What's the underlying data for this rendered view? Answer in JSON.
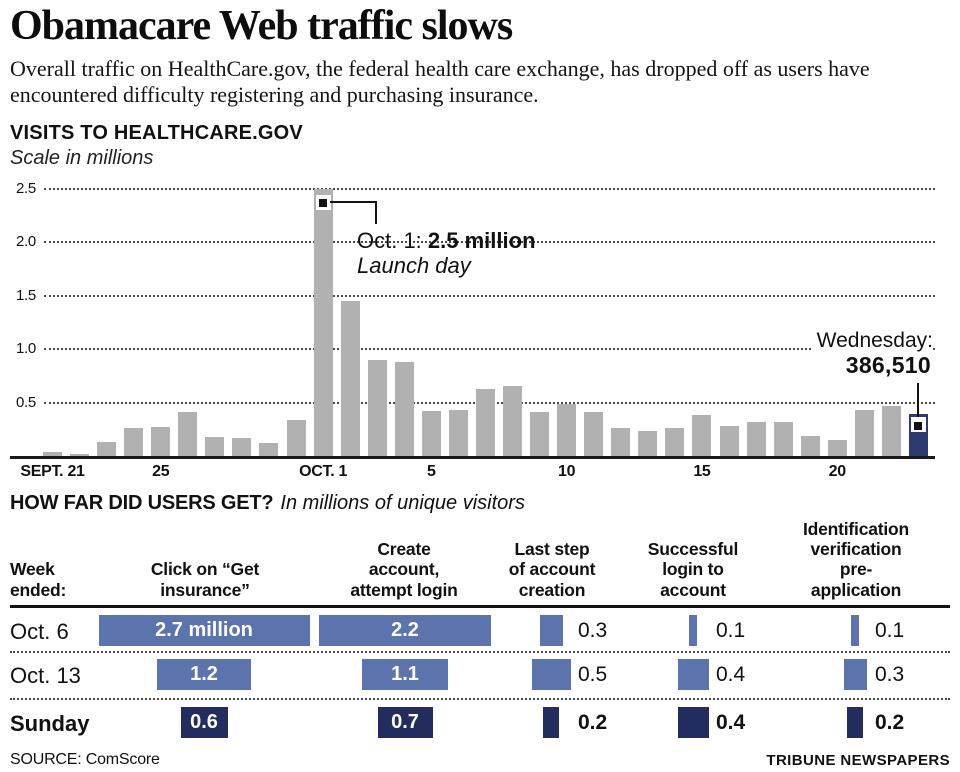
{
  "title": "Obamacare Web traffic slows",
  "subtitle": "Overall traffic on HealthCare.gov, the federal health care exchange, has dropped off as users have encountered difficulty registering and purchasing insurance.",
  "chart": {
    "heading": "VISITS TO HEALTHCARE.GOV",
    "scale_note": "Scale in millions",
    "annotation_launch": {
      "prefix": "Oct. 1: ",
      "value": "2.5 million",
      "note": "Launch day"
    },
    "annotation_latest": {
      "label": "Wednesday:",
      "value": "386,510"
    }
  },
  "chart_data": {
    "type": "bar",
    "title": "Visits to HealthCare.gov",
    "ylabel": "Scale in millions",
    "ylim": [
      0,
      2.5
    ],
    "yticks": [
      "2.5",
      "2.0",
      "1.5",
      "1.0",
      "0.5"
    ],
    "grid": "horizontal-dotted",
    "legend": "none",
    "x": [
      "Sept. 21",
      "Sept. 22",
      "Sept. 23",
      "Sept. 24",
      "Sept. 25",
      "Sept. 26",
      "Sept. 27",
      "Sept. 28",
      "Sept. 29",
      "Sept. 30",
      "Oct. 1",
      "Oct. 2",
      "Oct. 3",
      "Oct. 4",
      "Oct. 5",
      "Oct. 6",
      "Oct. 7",
      "Oct. 8",
      "Oct. 9",
      "Oct. 10",
      "Oct. 11",
      "Oct. 12",
      "Oct. 13",
      "Oct. 14",
      "Oct. 15",
      "Oct. 16",
      "Oct. 17",
      "Oct. 18",
      "Oct. 19",
      "Oct. 20",
      "Oct. 21",
      "Oct. 22",
      "Oct. 23"
    ],
    "values": [
      0.04,
      0.02,
      0.13,
      0.26,
      0.27,
      0.41,
      0.18,
      0.17,
      0.12,
      0.34,
      2.5,
      1.45,
      0.9,
      0.88,
      0.42,
      0.43,
      0.63,
      0.66,
      0.41,
      0.49,
      0.41,
      0.26,
      0.23,
      0.26,
      0.38,
      0.28,
      0.32,
      0.32,
      0.19,
      0.15,
      0.43,
      0.47,
      0.39
    ],
    "highlight_index": 32,
    "annotations": [
      {
        "x": "Oct. 1",
        "text": "Oct. 1: 2.5 million — Launch day"
      },
      {
        "x": "Oct. 23",
        "text": "Wednesday: 386,510"
      }
    ],
    "xticks": [
      {
        "label": "SEPT. 21",
        "index": 0
      },
      {
        "label": "25",
        "index": 4
      },
      {
        "label": "OCT. 1",
        "index": 10
      },
      {
        "label": "5",
        "index": 14
      },
      {
        "label": "10",
        "index": 19
      },
      {
        "label": "15",
        "index": 24
      },
      {
        "label": "20",
        "index": 29
      }
    ]
  },
  "table": {
    "heading": "HOW FAR DID USERS GET?",
    "heading_note": "In millions of unique visitors",
    "columns": [
      "Week\nended:",
      "Click on “Get\ninsurance”",
      "Create\naccount,\nattempt login",
      "Last step\nof account\ncreation",
      "Successful\nlogin to\naccount",
      "Identification\nverification\npre-application"
    ],
    "rows": [
      {
        "label": "Oct. 6",
        "display": [
          "2.7 million",
          "2.2",
          "0.3",
          "0.1",
          "0.1"
        ],
        "values": [
          2.7,
          2.2,
          0.3,
          0.1,
          0.1
        ],
        "emphasis": false
      },
      {
        "label": "Oct. 13",
        "display": [
          "1.2",
          "1.1",
          "0.5",
          "0.4",
          "0.3"
        ],
        "values": [
          1.2,
          1.1,
          0.5,
          0.4,
          0.3
        ],
        "emphasis": false
      },
      {
        "label": "Sunday",
        "display": [
          "0.6",
          "0.7",
          "0.2",
          "0.4",
          "0.2"
        ],
        "values": [
          0.6,
          0.7,
          0.2,
          0.4,
          0.2
        ],
        "emphasis": true
      }
    ]
  },
  "footer": {
    "source": "SOURCE: ComScore",
    "credit": "TRIBUNE NEWSPAPERS"
  },
  "colors": {
    "bar_gray": "#b1b1b1",
    "bar_navy": "#2e3a72",
    "table_blue": "#5b74ae",
    "table_navy": "#232c5f",
    "text": "#111111"
  }
}
